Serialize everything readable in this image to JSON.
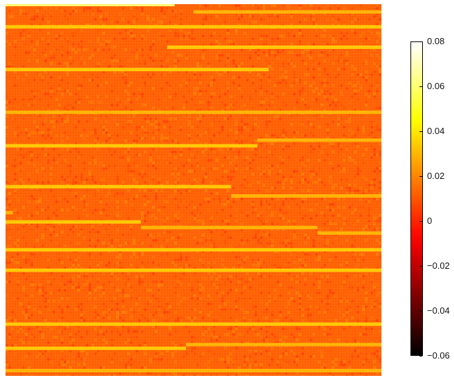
{
  "chart_data": {
    "type": "heatmap",
    "title": "",
    "xlabel": "",
    "ylabel": "",
    "grid": false,
    "legend": "none",
    "colormap": "hot",
    "background_value": 0.012,
    "colorbar": {
      "range": [
        -0.06,
        0.08
      ],
      "ticks": [
        -0.06,
        -0.04,
        -0.02,
        0,
        0.02,
        0.04,
        0.06,
        0.08
      ],
      "tick_labels": [
        "−0.06",
        "−0.04",
        "−0.02",
        "0",
        "0.02",
        "0.04",
        "0.06",
        "0.08"
      ],
      "placement": "right"
    },
    "stripes": [
      {
        "row_from_top": 0.0,
        "x_start": 0.0,
        "x_end": 0.45,
        "value": 0.06
      },
      {
        "row_from_top": 0.02,
        "x_start": 0.5,
        "x_end": 1.0,
        "value": 0.03
      },
      {
        "row_from_top": 0.06,
        "x_start": 0.0,
        "x_end": 1.0,
        "value": 0.035
      },
      {
        "row_from_top": 0.115,
        "x_start": 0.43,
        "x_end": 1.0,
        "value": 0.035
      },
      {
        "row_from_top": 0.175,
        "x_start": 0.0,
        "x_end": 0.7,
        "value": 0.035
      },
      {
        "row_from_top": 0.29,
        "x_start": 0.0,
        "x_end": 1.0,
        "value": 0.03
      },
      {
        "row_from_top": 0.365,
        "x_start": 0.67,
        "x_end": 1.0,
        "value": 0.03
      },
      {
        "row_from_top": 0.38,
        "x_start": 0.0,
        "x_end": 0.67,
        "value": 0.035
      },
      {
        "row_from_top": 0.49,
        "x_start": 0.0,
        "x_end": 0.6,
        "value": 0.035
      },
      {
        "row_from_top": 0.515,
        "x_start": 0.6,
        "x_end": 1.0,
        "value": 0.03
      },
      {
        "row_from_top": 0.56,
        "x_start": 0.0,
        "x_end": 0.02,
        "value": 0.03
      },
      {
        "row_from_top": 0.585,
        "x_start": 0.0,
        "x_end": 0.36,
        "value": 0.035
      },
      {
        "row_from_top": 0.6,
        "x_start": 0.36,
        "x_end": 0.83,
        "value": 0.03
      },
      {
        "row_from_top": 0.615,
        "x_start": 0.83,
        "x_end": 1.0,
        "value": 0.03
      },
      {
        "row_from_top": 0.66,
        "x_start": 0.0,
        "x_end": 1.0,
        "value": 0.035
      },
      {
        "row_from_top": 0.715,
        "x_start": 0.0,
        "x_end": 1.0,
        "value": 0.035
      },
      {
        "row_from_top": 0.86,
        "x_start": 0.0,
        "x_end": 1.0,
        "value": 0.035
      },
      {
        "row_from_top": 0.925,
        "x_start": 0.0,
        "x_end": 0.48,
        "value": 0.035
      },
      {
        "row_from_top": 0.915,
        "x_start": 0.48,
        "x_end": 1.0,
        "value": 0.03
      },
      {
        "row_from_top": 0.985,
        "x_start": 0.0,
        "x_end": 1.0,
        "value": 0.03
      }
    ]
  }
}
